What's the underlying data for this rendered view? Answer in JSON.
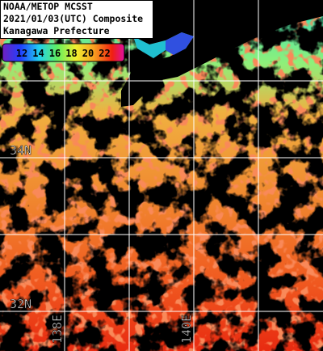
{
  "header": {
    "lines": [
      "NOAA/METOP MCSST",
      "2021/01/03(UTC) Composite",
      "Kanagawa Prefecture"
    ]
  },
  "colorbar": {
    "labels": [
      "12",
      "14",
      "16",
      "18",
      "20",
      "22"
    ]
  },
  "grid": {
    "lat_labels": [
      "34N",
      "32N"
    ],
    "lon_labels": [
      "138E",
      "140E"
    ]
  }
}
